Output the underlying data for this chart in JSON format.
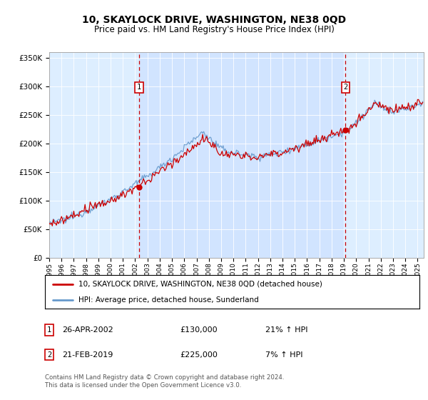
{
  "title": "10, SKAYLOCK DRIVE, WASHINGTON, NE38 0QD",
  "subtitle": "Price paid vs. HM Land Registry's House Price Index (HPI)",
  "legend_line1": "10, SKAYLOCK DRIVE, WASHINGTON, NE38 0QD (detached house)",
  "legend_line2": "HPI: Average price, detached house, Sunderland",
  "sale1_date": "26-APR-2002",
  "sale1_price": "£130,000",
  "sale1_hpi": "21% ↑ HPI",
  "sale2_date": "21-FEB-2019",
  "sale2_price": "£225,000",
  "sale2_hpi": "7% ↑ HPI",
  "footer": "Contains HM Land Registry data © Crown copyright and database right 2024.\nThis data is licensed under the Open Government Licence v3.0.",
  "sale1_year": 2002.32,
  "sale1_value": 130000,
  "sale2_year": 2019.13,
  "sale2_value": 225000,
  "line_color_red": "#cc0000",
  "line_color_blue": "#6699cc",
  "fill_color": "#cce0ff",
  "vline_color": "#cc0000",
  "plot_bg": "#ddeeff",
  "ylim": [
    0,
    360000
  ],
  "xlim_start": 1995,
  "xlim_end": 2025.5
}
